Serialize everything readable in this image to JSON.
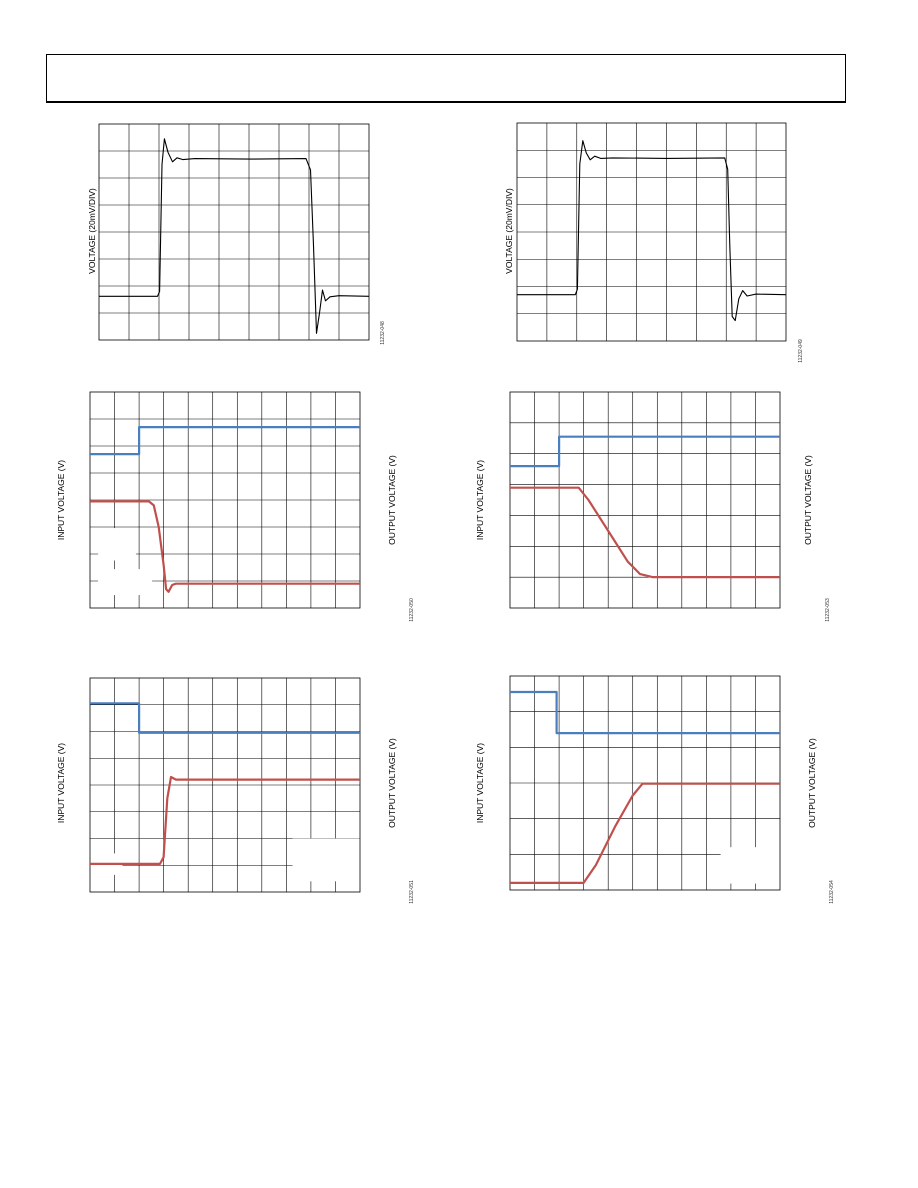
{
  "colors": {
    "input": "#4a7fbf",
    "output": "#c0504d",
    "trace": "#000000",
    "grid": "#000000"
  },
  "charts": [
    {
      "type": "line",
      "ylabel": "VOLTAGE (20mV/DIV)",
      "y2label": "",
      "figure_id": "11232-048",
      "grid": true,
      "divisions": {
        "x": 9,
        "y": 8
      },
      "series": [
        {
          "color": "trace",
          "points": [
            [
              0,
              1.62
            ],
            [
              1.95,
              1.62
            ],
            [
              2.02,
              1.8
            ],
            [
              2.1,
              6.5
            ],
            [
              2.18,
              7.45
            ],
            [
              2.3,
              6.95
            ],
            [
              2.45,
              6.6
            ],
            [
              2.6,
              6.75
            ],
            [
              2.8,
              6.68
            ],
            [
              3.2,
              6.72
            ],
            [
              5,
              6.7
            ],
            [
              6.9,
              6.72
            ],
            [
              7.05,
              6.3
            ],
            [
              7.15,
              3.5
            ],
            [
              7.25,
              0.25
            ],
            [
              7.35,
              1.0
            ],
            [
              7.45,
              1.85
            ],
            [
              7.55,
              1.45
            ],
            [
              7.7,
              1.6
            ],
            [
              8.0,
              1.64
            ],
            [
              9,
              1.62
            ]
          ]
        }
      ]
    },
    {
      "type": "line",
      "ylabel": "VOLTAGE (20mV/DIV)",
      "y2label": "",
      "figure_id": "11232-049",
      "grid": true,
      "divisions": {
        "x": 9,
        "y": 8
      },
      "series": [
        {
          "color": "trace",
          "points": [
            [
              0,
              1.7
            ],
            [
              1.95,
              1.7
            ],
            [
              2.02,
              1.9
            ],
            [
              2.1,
              6.5
            ],
            [
              2.2,
              7.35
            ],
            [
              2.32,
              6.9
            ],
            [
              2.45,
              6.65
            ],
            [
              2.6,
              6.78
            ],
            [
              2.8,
              6.7
            ],
            [
              3.2,
              6.72
            ],
            [
              5,
              6.7
            ],
            [
              6.95,
              6.72
            ],
            [
              7.05,
              6.3
            ],
            [
              7.12,
              3.5
            ],
            [
              7.2,
              0.9
            ],
            [
              7.3,
              0.75
            ],
            [
              7.42,
              1.55
            ],
            [
              7.55,
              1.85
            ],
            [
              7.7,
              1.65
            ],
            [
              8.0,
              1.72
            ],
            [
              9,
              1.7
            ]
          ]
        }
      ]
    },
    {
      "type": "line",
      "ylabel": "INPUT VOLTAGE (V)",
      "y2label": "OUTPUT VOLTAGE (V)",
      "figure_id": "11232-050",
      "grid": true,
      "divisions": {
        "x": 11,
        "y": 8
      },
      "series": [
        {
          "color": "input",
          "points": [
            [
              0,
              5.7
            ],
            [
              2,
              5.7
            ],
            [
              2,
              6.7
            ],
            [
              11,
              6.7
            ]
          ]
        },
        {
          "color": "output",
          "points": [
            [
              0,
              3.95
            ],
            [
              2.4,
              3.95
            ],
            [
              2.6,
              3.8
            ],
            [
              2.8,
              3.0
            ],
            [
              3.0,
              1.6
            ],
            [
              3.1,
              0.7
            ],
            [
              3.2,
              0.6
            ],
            [
              3.35,
              0.85
            ],
            [
              3.5,
              0.9
            ],
            [
              11,
              0.9
            ]
          ]
        }
      ]
    },
    {
      "type": "line",
      "ylabel": "INPUT VOLTAGE (V)",
      "y2label": "OUTPUT VOLTAGE (V)",
      "figure_id": "11232-053",
      "grid": true,
      "divisions": {
        "x": 11,
        "y": 7
      },
      "series": [
        {
          "color": "input",
          "points": [
            [
              0,
              4.6
            ],
            [
              2,
              4.6
            ],
            [
              2,
              5.55
            ],
            [
              11,
              5.55
            ]
          ]
        },
        {
          "color": "output",
          "points": [
            [
              0,
              3.9
            ],
            [
              2.8,
              3.9
            ],
            [
              3.2,
              3.5
            ],
            [
              4.0,
              2.5
            ],
            [
              4.8,
              1.5
            ],
            [
              5.3,
              1.1
            ],
            [
              5.8,
              1.0
            ],
            [
              11,
              1.0
            ]
          ]
        }
      ]
    },
    {
      "type": "line",
      "ylabel": "INPUT VOLTAGE (V)",
      "y2label": "OUTPUT VOLTAGE (V)",
      "figure_id": "11232-051",
      "grid": true,
      "divisions": {
        "x": 11,
        "y": 8
      },
      "series": [
        {
          "color": "input",
          "points": [
            [
              0,
              7.05
            ],
            [
              2,
              7.05
            ],
            [
              2,
              5.95
            ],
            [
              11,
              5.95
            ]
          ]
        },
        {
          "color": "output",
          "points": [
            [
              0,
              1.05
            ],
            [
              2.85,
              1.05
            ],
            [
              3.0,
              1.3
            ],
            [
              3.15,
              3.5
            ],
            [
              3.3,
              4.3
            ],
            [
              3.5,
              4.2
            ],
            [
              11,
              4.2
            ]
          ]
        }
      ]
    },
    {
      "type": "line",
      "ylabel": "INPUT VOLTAGE (V)",
      "y2label": "OUTPUT VOLTAGE (V)",
      "figure_id": "11232-054",
      "grid": true,
      "divisions": {
        "x": 11,
        "y": 6
      },
      "series": [
        {
          "color": "input",
          "points": [
            [
              0,
              5.55
            ],
            [
              1.9,
              5.55
            ],
            [
              1.9,
              4.4
            ],
            [
              11,
              4.4
            ]
          ]
        },
        {
          "color": "output",
          "points": [
            [
              0,
              0.2
            ],
            [
              3.0,
              0.2
            ],
            [
              3.5,
              0.7
            ],
            [
              4.3,
              1.8
            ],
            [
              5.0,
              2.65
            ],
            [
              5.4,
              2.98
            ],
            [
              11,
              2.98
            ]
          ]
        }
      ]
    }
  ]
}
